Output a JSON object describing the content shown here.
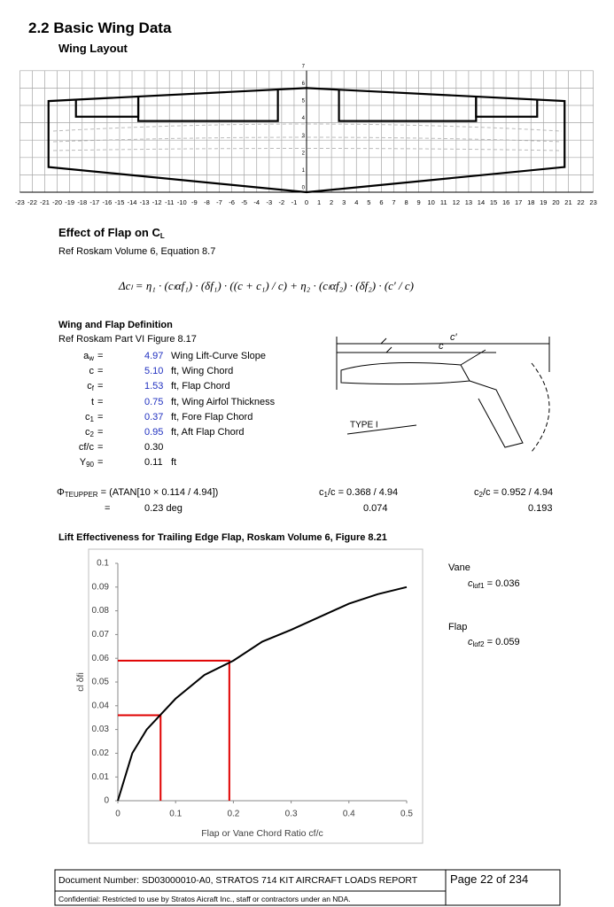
{
  "header": {
    "title": "2.2 Basic Wing Data",
    "subtitle": "Wing Layout"
  },
  "chart_data": [
    {
      "type": "outline",
      "xlim": [
        -23,
        23
      ],
      "ylim": [
        0,
        7
      ],
      "xticks": [
        -23,
        -22,
        -21,
        -20,
        -19,
        -18,
        -17,
        -16,
        -15,
        -14,
        -13,
        -12,
        -11,
        -10,
        -9,
        -8,
        -7,
        -6,
        -5,
        -4,
        -3,
        -2,
        -1,
        0,
        1,
        2,
        3,
        4,
        5,
        6,
        7,
        8,
        9,
        10,
        11,
        12,
        13,
        14,
        15,
        16,
        17,
        18,
        19,
        20,
        21,
        22,
        23
      ],
      "yticks": [
        0,
        1,
        2,
        3,
        4,
        5,
        6,
        7
      ],
      "grid": true,
      "series": [
        {
          "color": "#000000",
          "x": [
            0,
            -20.7,
            -20.7,
            0,
            20.7,
            20.7,
            0
          ],
          "values": [
            6,
            5.25,
            1.45,
            0,
            1.45,
            5.25,
            6
          ]
        },
        {
          "color": "#000000",
          "x": [
            -18.5,
            -18.5,
            -13.5,
            -13.5
          ],
          "values": [
            5.3,
            4.35,
            4.35,
            5.5
          ]
        },
        {
          "color": "#000000",
          "x": [
            -13.5,
            -13.5,
            -2.3,
            -2.3
          ],
          "values": [
            5.5,
            4.1,
            4.1,
            5.9
          ]
        },
        {
          "color": "#000000",
          "x": [
            2.6,
            2.6,
            13.6,
            13.6
          ],
          "values": [
            5.9,
            4.1,
            4.1,
            5.5
          ]
        },
        {
          "color": "#000000",
          "x": [
            13.6,
            13.6,
            18.5,
            18.5
          ],
          "values": [
            5.5,
            4.35,
            4.35,
            5.3
          ]
        }
      ]
    },
    {
      "type": "line",
      "title": "Lift Effectiveness for Trailing Edge Flap, Roskam Volume 6, Figure 8.21",
      "x": [
        0,
        0.025,
        0.05,
        0.1,
        0.15,
        0.2,
        0.25,
        0.3,
        0.4,
        0.45,
        0.5
      ],
      "values": [
        0,
        0.02,
        0.03,
        0.043,
        0.053,
        0.059,
        0.067,
        0.072,
        0.083,
        0.087,
        0.09
      ],
      "color": "#000000",
      "xlim": [
        0,
        0.5
      ],
      "ylim": [
        0,
        0.1
      ],
      "xticks": [
        0,
        0.1,
        0.2,
        0.3,
        0.4,
        0.5
      ],
      "yticks": [
        0,
        0.01,
        0.02,
        0.03,
        0.04,
        0.05,
        0.06,
        0.07,
        0.08,
        0.09,
        0.1
      ],
      "x_label": "Flap or Vane Chord Ratio cf/c",
      "y_label": "cl δfi",
      "reference_points": {
        "x": [
          0.074,
          0.193
        ],
        "values": [
          0.036,
          0.059
        ],
        "color": "#e00000"
      }
    }
  ],
  "flap_effect": {
    "heading": "Effect of Flap on C",
    "heading_sub": "L",
    "reference": "Ref Roskam Volume 6, Equation 8.7",
    "equation": "Δcₗ = η₁ · (cₗαf₁) · (δf₁) · ((c + c₁) / c) + η₂ · (cₗαf₂) · (δf₂) · (c′ / c)"
  },
  "definition": {
    "heading": "Wing and Flap Definition",
    "reference": "Ref Roskam Part VI Figure 8.17",
    "rows": [
      {
        "symbol": "a",
        "sub": "w",
        "equals": "=",
        "value": "4.97",
        "unit": "Wing Lift-Curve Slope",
        "highlight": true
      },
      {
        "symbol": "c",
        "equals": "=",
        "value": "5.10",
        "unit": "ft, Wing Chord",
        "highlight": true
      },
      {
        "symbol": "c",
        "sub": "f",
        "equals": "=",
        "value": "1.53",
        "unit": "ft, Flap Chord",
        "highlight": true
      },
      {
        "symbol": "t",
        "equals": "=",
        "value": "0.75",
        "unit": "ft, Wing Airfol Thickness",
        "highlight": true
      },
      {
        "symbol": "c",
        "sub": "1",
        "equals": "=",
        "value": "0.37",
        "unit": "ft, Fore Flap Chord",
        "highlight": true
      },
      {
        "symbol": "c",
        "sub": "2",
        "equals": "=",
        "value": "0.95",
        "unit": "ft, Aft Flap Chord",
        "highlight": true
      },
      {
        "symbol": "cf/c",
        "equals": "=",
        "value": "0.30",
        "highlight": false
      },
      {
        "symbol": "Y",
        "sub": "90",
        "equals": "=",
        "value": "0.11",
        "unit": "ft",
        "highlight": false
      }
    ],
    "figure": {
      "c_prime": "c′",
      "c": "c",
      "type": "TYPE I"
    }
  },
  "calc": {
    "phi": {
      "symbol": "Φ",
      "sub": "TEUPPER",
      "expr": "= (ATAN[10 × 0.114 / 4.94])",
      "equals": "=",
      "result": "0.23 deg"
    },
    "c1": {
      "symbol": "c",
      "sub": "1",
      "expr": "/c = 0.368 / 4.94",
      "result": "0.074"
    },
    "c2": {
      "symbol": "c",
      "sub": "2",
      "expr": "/c = 0.952 / 4.94",
      "result": "0.193"
    }
  },
  "lift_notes": {
    "vane": {
      "heading": "Vane",
      "symbol": "c",
      "sub": "lαf1",
      "text": "= 0.036"
    },
    "flap": {
      "heading": "Flap",
      "symbol": "c",
      "sub": "lαf2",
      "text": "= 0.059"
    }
  },
  "footer": {
    "document": "Document Number: SD03000010-A0, STRATOS 714 KIT AIRCRAFT LOADS REPORT",
    "page": "Page 22 of 234",
    "confidential": "Confidential: Restricted to use by Stratos Aicraft Inc., staff or contractors under an NDA."
  }
}
